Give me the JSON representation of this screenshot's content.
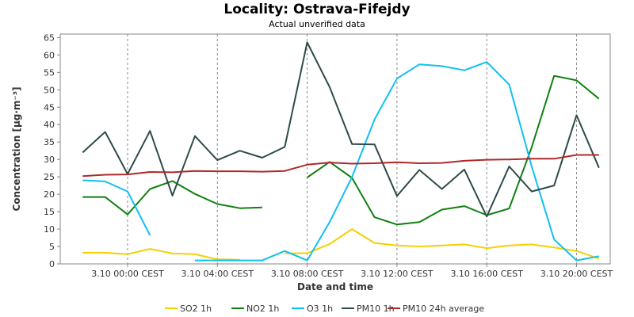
{
  "chart_data": {
    "type": "line",
    "title": "Locality: Ostrava-Fifejdy",
    "subtitle": "Actual unverified data",
    "xlabel": "Date and time",
    "ylabel": "Concentration [µg·m⁻³]",
    "ylim": [
      0,
      66
    ],
    "yticks": [
      0,
      5,
      10,
      15,
      20,
      25,
      30,
      35,
      40,
      45,
      50,
      55,
      60,
      65
    ],
    "xrange_hours": [
      -3,
      21.5
    ],
    "xticks": [
      {
        "hour": 0,
        "label": "3.10 00:00 CEST"
      },
      {
        "hour": 4,
        "label": "3.10 04:00 CEST"
      },
      {
        "hour": 8,
        "label": "3.10 08:00 CEST"
      },
      {
        "hour": 12,
        "label": "3.10 12:00 CEST"
      },
      {
        "hour": 16,
        "label": "3.10 16:00 CEST"
      },
      {
        "hour": 20,
        "label": "3.10 20:00 CEST"
      }
    ],
    "grid": true,
    "legend_position": "bottom",
    "hours": [
      -2,
      -1,
      0,
      1,
      2,
      3,
      4,
      5,
      6,
      7,
      8,
      9,
      10,
      11,
      12,
      13,
      14,
      15,
      16,
      17,
      18,
      19,
      20,
      21
    ],
    "series": [
      {
        "name": "SO2 1h",
        "color": "#f5d000",
        "values": [
          3.2,
          3.2,
          2.8,
          4.3,
          3.0,
          2.8,
          1.3,
          1.2,
          null,
          3.0,
          3.1,
          5.7,
          10.0,
          6.0,
          5.3,
          5.0,
          5.3,
          5.6,
          4.5,
          5.3,
          5.6,
          4.7,
          3.7,
          1.5
        ]
      },
      {
        "name": "NO2 1h",
        "color": "#108010",
        "values": [
          19.2,
          19.2,
          14.2,
          21.5,
          23.8,
          20.1,
          17.2,
          16.0,
          16.2,
          null,
          24.8,
          29.3,
          24.7,
          13.4,
          11.3,
          12.0,
          15.6,
          16.6,
          14.0,
          15.9,
          33.5,
          54.0,
          52.7,
          47.4
        ]
      },
      {
        "name": "O3 1h",
        "color": "#10c0f0",
        "values": [
          24.0,
          23.7,
          20.8,
          8.2,
          null,
          1.0,
          1.0,
          1.0,
          1.0,
          3.7,
          1.0,
          12.0,
          25.0,
          41.5,
          53.2,
          57.3,
          56.8,
          55.6,
          58.0,
          51.5,
          28.0,
          7.0,
          1.0,
          2.2
        ]
      },
      {
        "name": "PM10 1h",
        "color": "#2f4a4a",
        "values": [
          32.0,
          37.9,
          25.8,
          38.2,
          19.6,
          36.7,
          29.8,
          32.5,
          30.5,
          33.6,
          63.6,
          50.8,
          34.4,
          34.3,
          19.5,
          27.0,
          21.5,
          27.1,
          13.6,
          28.0,
          20.8,
          22.5,
          42.7,
          27.6
        ]
      },
      {
        "name": "PM10 24h average",
        "color": "#b02828",
        "values": [
          25.2,
          25.6,
          25.7,
          26.4,
          26.3,
          26.7,
          26.6,
          26.6,
          26.5,
          26.7,
          28.5,
          29.1,
          28.8,
          28.9,
          29.2,
          28.9,
          29.0,
          29.6,
          29.9,
          30.0,
          30.2,
          30.2,
          31.3,
          31.3
        ]
      }
    ]
  }
}
